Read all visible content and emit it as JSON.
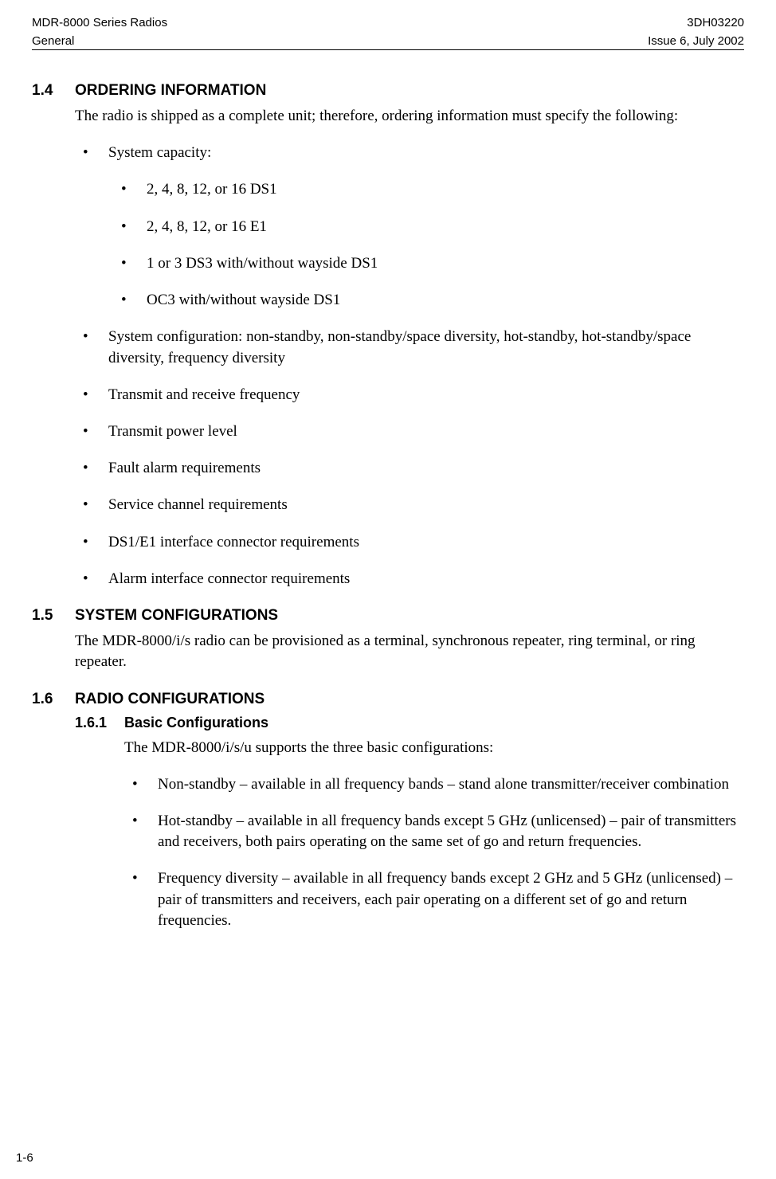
{
  "header": {
    "left1": "MDR-8000 Series Radios",
    "right1": "3DH03220",
    "left2": "General",
    "right2": "Issue 6, July 2002"
  },
  "sections": {
    "s14": {
      "num": "1.4",
      "title": "ORDERING INFORMATION",
      "intro": "The radio is shipped as a complete unit; therefore, ordering information must specify the following:",
      "bullets": {
        "b0": "System capacity:",
        "sub": {
          "s0": "2, 4, 8, 12, or 16 DS1",
          "s1": "2, 4, 8, 12, or 16 E1",
          "s2": "1 or 3 DS3 with/without wayside DS1",
          "s3": "OC3 with/without wayside DS1"
        },
        "b1": "System configuration: non-standby, non-standby/space diversity, hot-standby, hot-standby/space diversity, frequency diversity",
        "b2": "Transmit and receive frequency",
        "b3": "Transmit power level",
        "b4": "Fault alarm requirements",
        "b5": "Service channel requirements",
        "b6": "DS1/E1 interface connector requirements",
        "b7": "Alarm interface connector requirements"
      }
    },
    "s15": {
      "num": "1.5",
      "title": "SYSTEM CONFIGURATIONS",
      "body": "The MDR-8000/i/s radio can be provisioned as a terminal, synchronous repeater, ring terminal, or ring repeater."
    },
    "s16": {
      "num": "1.6",
      "title": "RADIO CONFIGURATIONS",
      "sub161": {
        "num": "1.6.1",
        "title": "Basic Configurations",
        "intro": "The MDR-8000/i/s/u supports the three basic configurations:",
        "bullets": {
          "b0": "Non-standby – available in all frequency bands – stand alone transmitter/receiver combination",
          "b1": "Hot-standby – available in all frequency bands except 5 GHz (unlicensed) – pair of transmitters and receivers, both pairs operating on the same set of go and return frequencies.",
          "b2": "Frequency diversity – available in all frequency bands except 2 GHz and 5 GHz (unlicensed) – pair of transmitters and receivers, each pair operating on a different set of go and return frequencies."
        }
      }
    }
  },
  "pageNumber": "1-6"
}
